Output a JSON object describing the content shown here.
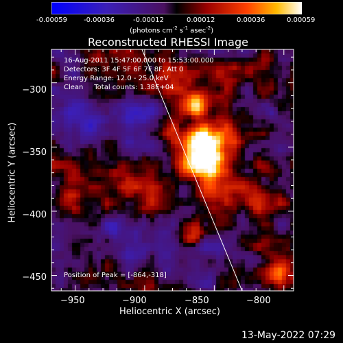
{
  "colorbar": {
    "ticks": [
      "-0.00059",
      "-0.00036",
      "-0.00012",
      "0.00012",
      "0.00036",
      "0.00059"
    ],
    "units_pre": "(photons cm",
    "units_sup1": "-2",
    "units_mid1": " s",
    "units_sup2": "-1",
    "units_mid2": " asec",
    "units_sup3": "-2",
    "units_post": ")"
  },
  "annotations": {
    "time": "16-Aug-2011 15:47:00.000 to 15:53:00.000",
    "detectors": "Detectors: 3F 4F 5F 6F 7F 8F, Att 0",
    "energy": "Energy Range: 12.0 - 25.0 keV",
    "method": "Clean     Total counts: 1.38E+04",
    "peak": "Position of Peak = [-864,-318]"
  },
  "footer": {
    "date": "13-May-2022 07:29"
  },
  "chart_data": {
    "type": "heatmap",
    "title": "Reconstructed RHESSI Image",
    "xlabel": "Heliocentric X (arcsec)",
    "ylabel": "Heliocentric Y (arcsec)",
    "xlim": [
      -967,
      -793
    ],
    "ylim": [
      -462,
      -274
    ],
    "x_ticks": [
      -950,
      -900,
      -850,
      -800
    ],
    "x_tick_labels": [
      "−950",
      "−900",
      "−850",
      "−800"
    ],
    "y_ticks": [
      -300,
      -350,
      -400,
      -450
    ],
    "y_tick_labels": [
      "−300",
      "−350",
      "−400",
      "−450"
    ],
    "color_range": [
      -0.00059,
      0.00059
    ],
    "limb_line": [
      [
        -902,
        -274
      ],
      [
        -830,
        -462
      ]
    ],
    "sources": [
      {
        "x": -864,
        "y": -318,
        "r": 9,
        "v": 0.00059
      },
      {
        "x": -860,
        "y": -345,
        "r": 12,
        "v": 0.00042
      },
      {
        "x": -853,
        "y": -363,
        "r": 15,
        "v": 0.00048
      },
      {
        "x": -872,
        "y": -348,
        "r": 16,
        "v": 0.0003
      },
      {
        "x": -838,
        "y": -345,
        "r": 14,
        "v": 0.00025
      },
      {
        "x": -820,
        "y": -393,
        "r": 12,
        "v": 0.00028
      },
      {
        "x": -845,
        "y": -390,
        "r": 12,
        "v": 0.00022
      },
      {
        "x": -866,
        "y": -419,
        "r": 9,
        "v": 0.00034
      },
      {
        "x": -808,
        "y": -448,
        "r": 12,
        "v": 0.00036
      },
      {
        "x": -923,
        "y": -370,
        "r": 12,
        "v": 0.00018
      },
      {
        "x": -958,
        "y": -392,
        "r": 10,
        "v": 0.00016
      },
      {
        "x": -895,
        "y": -392,
        "r": 9,
        "v": 0.00012
      },
      {
        "x": -880,
        "y": -305,
        "r": 10,
        "v": 0.00014
      },
      {
        "x": -900,
        "y": -330,
        "r": 18,
        "v": -0.00022
      },
      {
        "x": -945,
        "y": -323,
        "r": 22,
        "v": -0.00026
      },
      {
        "x": -915,
        "y": -425,
        "r": 20,
        "v": -0.00032
      },
      {
        "x": -805,
        "y": -327,
        "r": 14,
        "v": -0.00025
      },
      {
        "x": -855,
        "y": -440,
        "r": 14,
        "v": -0.00018
      }
    ]
  }
}
